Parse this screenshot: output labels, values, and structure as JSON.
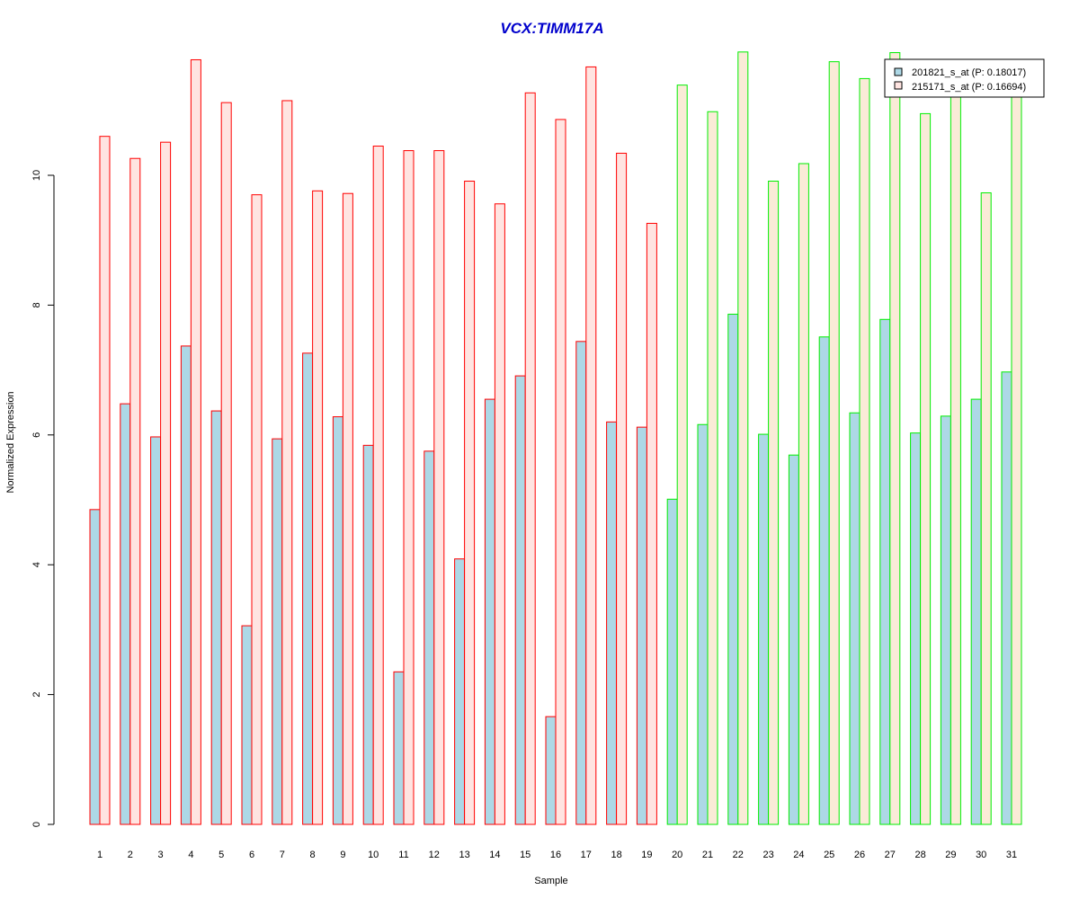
{
  "chart_data": {
    "type": "bar",
    "title": "VCX:TIMM17A",
    "xlabel": "Sample",
    "ylabel": "Normalized Expression",
    "ylim": [
      0,
      12
    ],
    "yticks": [
      0,
      2,
      4,
      6,
      8,
      10
    ],
    "grid": false,
    "legend_position": "top-right",
    "categories": [
      "1",
      "2",
      "3",
      "4",
      "5",
      "6",
      "7",
      "8",
      "9",
      "10",
      "11",
      "12",
      "13",
      "14",
      "15",
      "16",
      "17",
      "18",
      "19",
      "20",
      "21",
      "22",
      "23",
      "24",
      "25",
      "26",
      "27",
      "28",
      "29",
      "30",
      "31"
    ],
    "series": [
      {
        "name": "201821_s_at (P: 0.18017)",
        "fill": "#add8e6",
        "values": [
          4.85,
          6.48,
          5.97,
          7.37,
          6.37,
          3.06,
          5.94,
          7.26,
          6.28,
          5.84,
          2.35,
          5.75,
          4.09,
          6.55,
          6.91,
          1.66,
          7.44,
          6.2,
          6.12,
          5.01,
          6.16,
          7.86,
          6.01,
          5.69,
          7.51,
          6.34,
          7.78,
          6.03,
          6.29,
          6.55,
          6.97
        ]
      },
      {
        "name": "215171_s_at (P: 0.16694)",
        "fill_group1": "#ffe4e1",
        "fill_group2": "#faebd7",
        "values": [
          10.6,
          10.26,
          10.51,
          11.78,
          11.12,
          9.7,
          11.15,
          9.76,
          9.72,
          10.45,
          10.38,
          10.38,
          9.91,
          9.56,
          11.27,
          10.86,
          11.67,
          10.34,
          9.26,
          11.39,
          10.98,
          11.9,
          9.91,
          10.18,
          11.75,
          11.49,
          11.89,
          10.95,
          11.45,
          9.73,
          11.48
        ]
      }
    ],
    "group_borders": {
      "group1_color": "#ff0000",
      "group2_color": "#00ee00",
      "group1_last_sample": 19
    }
  }
}
